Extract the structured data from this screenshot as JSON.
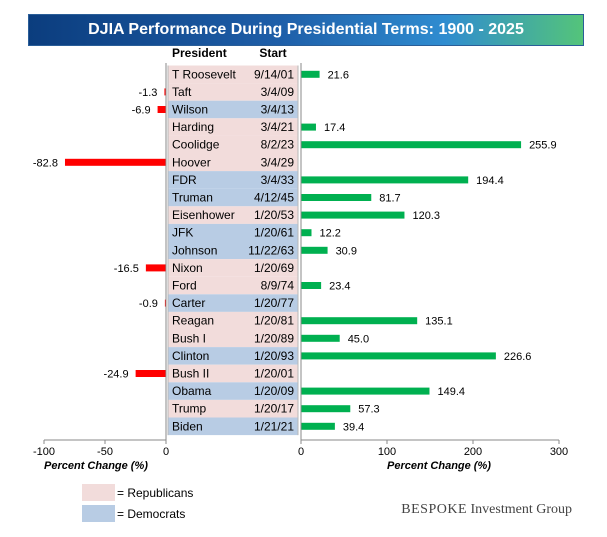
{
  "title": "DJIA Performance During Presidential Terms: 1900 - 2025",
  "columns": {
    "president": "President",
    "start": "Start"
  },
  "axis_titles": {
    "left": "Percent Change (%)",
    "right": "Percent Change (%)"
  },
  "legend": [
    {
      "label": "= Republicans",
      "party": "R"
    },
    {
      "label": "= Democrats",
      "party": "D"
    }
  ],
  "watermark": {
    "brand": "BESPOKE",
    "rest": " Investment Group"
  },
  "colors": {
    "positive_bar": "#00b050",
    "negative_bar": "#ff0000",
    "republican_bg": "#f2dcdb",
    "democrat_bg": "#b8cce4",
    "title_start": "#0b3d7e",
    "title_end": "#54c47a"
  },
  "chart_data": {
    "type": "bar",
    "orientation": "horizontal",
    "title": "DJIA Performance During Presidential Terms: 1900 - 2025",
    "xlabel": "Percent Change (%)",
    "negative_axis": {
      "xlim": [
        -100,
        0
      ],
      "ticks": [
        -100,
        -50,
        0
      ]
    },
    "positive_axis": {
      "xlim": [
        0,
        300
      ],
      "ticks": [
        0,
        100,
        200,
        300
      ]
    },
    "grid": false,
    "legend_position": "bottom-left",
    "presidents": [
      {
        "name": "T Roosevelt",
        "start": "9/14/01",
        "party": "R",
        "value": 21.6,
        "label": "21.6"
      },
      {
        "name": "Taft",
        "start": "3/4/09",
        "party": "R",
        "value": -1.3,
        "label": "-1.3"
      },
      {
        "name": "Wilson",
        "start": "3/4/13",
        "party": "D",
        "value": -6.9,
        "label": "-6.9"
      },
      {
        "name": "Harding",
        "start": "3/4/21",
        "party": "R",
        "value": 17.4,
        "label": "17.4"
      },
      {
        "name": "Coolidge",
        "start": "8/2/23",
        "party": "R",
        "value": 255.9,
        "label": "255.9"
      },
      {
        "name": "Hoover",
        "start": "3/4/29",
        "party": "R",
        "value": -82.8,
        "label": "-82.8"
      },
      {
        "name": "FDR",
        "start": "3/4/33",
        "party": "D",
        "value": 194.4,
        "label": "194.4"
      },
      {
        "name": "Truman",
        "start": "4/12/45",
        "party": "D",
        "value": 81.7,
        "label": "81.7"
      },
      {
        "name": "Eisenhower",
        "start": "1/20/53",
        "party": "R",
        "value": 120.3,
        "label": "120.3"
      },
      {
        "name": "JFK",
        "start": "1/20/61",
        "party": "D",
        "value": 12.2,
        "label": "12.2"
      },
      {
        "name": "Johnson",
        "start": "11/22/63",
        "party": "D",
        "value": 30.9,
        "label": "30.9"
      },
      {
        "name": "Nixon",
        "start": "1/20/69",
        "party": "R",
        "value": -16.5,
        "label": "-16.5"
      },
      {
        "name": "Ford",
        "start": "8/9/74",
        "party": "R",
        "value": 23.4,
        "label": "23.4"
      },
      {
        "name": "Carter",
        "start": "1/20/77",
        "party": "D",
        "value": -0.9,
        "label": "-0.9"
      },
      {
        "name": "Reagan",
        "start": "1/20/81",
        "party": "R",
        "value": 135.1,
        "label": "135.1"
      },
      {
        "name": "Bush I",
        "start": "1/20/89",
        "party": "R",
        "value": 45.0,
        "label": "45.0"
      },
      {
        "name": "Clinton",
        "start": "1/20/93",
        "party": "D",
        "value": 226.6,
        "label": "226.6"
      },
      {
        "name": "Bush II",
        "start": "1/20/01",
        "party": "R",
        "value": -24.9,
        "label": "-24.9"
      },
      {
        "name": "Obama",
        "start": "1/20/09",
        "party": "D",
        "value": 149.4,
        "label": "149.4"
      },
      {
        "name": "Trump",
        "start": "1/20/17",
        "party": "R",
        "value": 57.3,
        "label": "57.3"
      },
      {
        "name": "Biden",
        "start": "1/21/21",
        "party": "D",
        "value": 39.4,
        "label": "39.4"
      }
    ]
  }
}
